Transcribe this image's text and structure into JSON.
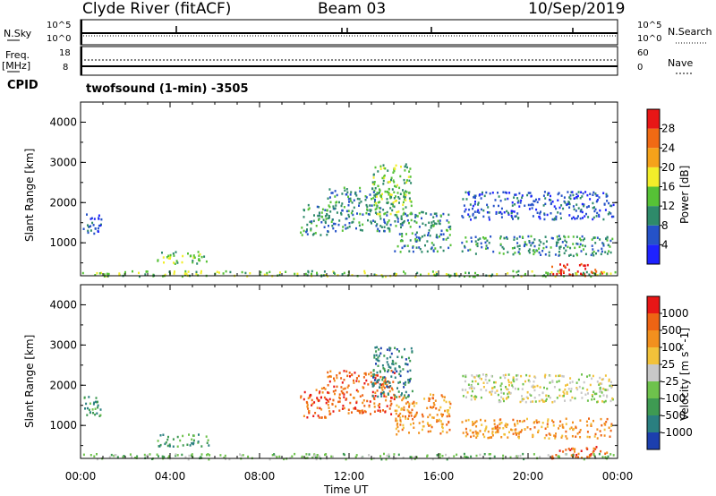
{
  "header": {
    "station": "Clyde River (fitACF)",
    "beam": "Beam 03",
    "date": "10/Sep/2019"
  },
  "panels": {
    "nsky_label": "N.Sky",
    "nsearch_label": "N.Search",
    "freq_label": "Freq.",
    "freq_unit": "[MHz]",
    "nave_label": "Nave",
    "cpid_label": "CPID",
    "cpid_text": "twofsound (1-min) -3505",
    "nsky_left_ticks": [
      "10^5",
      "10^0"
    ],
    "nsky_right_ticks": [
      "10^5",
      "10^0"
    ],
    "freq_left_ticks": [
      "18",
      "8"
    ],
    "freq_right_ticks": [
      "60",
      "0"
    ]
  },
  "chart_data": [
    {
      "type": "heatmap",
      "name": "Power",
      "ylabel": "Slant Range [km]",
      "xlabel": "Time UT",
      "x_ticks": [
        "00:00",
        "04:00",
        "08:00",
        "12:00",
        "16:00",
        "20:00",
        "00:00"
      ],
      "y_ticks": [
        1000,
        2000,
        3000,
        4000
      ],
      "ylim": [
        180,
        4500
      ],
      "colorbar": {
        "label": "Power [dB]",
        "ticks": [
          "4",
          "8",
          "12",
          "16",
          "20",
          "24",
          "28"
        ],
        "colors": [
          "#1e22ff",
          "#2552c8",
          "#2e8a6a",
          "#56c236",
          "#f2ee2a",
          "#f5a21a",
          "#f06a14",
          "#e81616"
        ]
      },
      "regions": [
        {
          "t0": 0.1,
          "t1": 0.9,
          "r0": 1200,
          "r1": 1800,
          "c": 1
        },
        {
          "t0": 3.4,
          "t1": 5.7,
          "r0": 500,
          "r1": 800,
          "c": 3
        },
        {
          "t0": 9.8,
          "t1": 11.0,
          "r0": 1200,
          "r1": 2000,
          "c": 2
        },
        {
          "t0": 11.0,
          "t1": 14.0,
          "r0": 1300,
          "r1": 2400,
          "c": 2
        },
        {
          "t0": 13.0,
          "t1": 14.8,
          "r0": 1700,
          "r1": 3000,
          "c": 3
        },
        {
          "t0": 14.0,
          "t1": 16.5,
          "r0": 800,
          "r1": 1800,
          "c": 2
        },
        {
          "t0": 17.0,
          "t1": 23.8,
          "r0": 1600,
          "r1": 2300,
          "c": 1
        },
        {
          "t0": 17.0,
          "t1": 23.8,
          "r0": 700,
          "r1": 1200,
          "c": 2
        },
        {
          "t0": 21.0,
          "t1": 23.5,
          "r0": 200,
          "r1": 500,
          "c": 7
        },
        {
          "t0": 0.0,
          "t1": 24.0,
          "r0": 180,
          "r1": 320,
          "c": 3
        }
      ]
    },
    {
      "type": "heatmap",
      "name": "Velocity",
      "ylabel": "Slant Range [km]",
      "xlabel": "Time UT",
      "x_ticks": [
        "00:00",
        "04:00",
        "08:00",
        "12:00",
        "16:00",
        "20:00",
        "00:00"
      ],
      "y_ticks": [
        1000,
        2000,
        3000,
        4000
      ],
      "ylim": [
        180,
        4500
      ],
      "colorbar": {
        "label": "Velocity [m s^-1]",
        "ticks": [
          "1000",
          "500",
          "100",
          "25",
          "-25",
          "-100",
          "-500",
          "-1000"
        ],
        "colors": [
          "#1c3fae",
          "#2a7f80",
          "#3e9a52",
          "#6ec24c",
          "#c8c8c8",
          "#f2c23a",
          "#f2901e",
          "#ee6414",
          "#e81616"
        ]
      },
      "regions": [
        {
          "t0": 0.1,
          "t1": 0.9,
          "r0": 1200,
          "r1": 1800,
          "c": 2
        },
        {
          "t0": 3.4,
          "t1": 5.7,
          "r0": 500,
          "r1": 800,
          "c": 2
        },
        {
          "t0": 9.8,
          "t1": 11.0,
          "r0": 1200,
          "r1": 2000,
          "c": 7
        },
        {
          "t0": 11.0,
          "t1": 14.0,
          "r0": 1300,
          "r1": 2400,
          "c": 7
        },
        {
          "t0": 13.0,
          "t1": 14.8,
          "r0": 1700,
          "r1": 3000,
          "c": 1
        },
        {
          "t0": 14.0,
          "t1": 16.5,
          "r0": 800,
          "r1": 1800,
          "c": 6
        },
        {
          "t0": 17.0,
          "t1": 23.8,
          "r0": 1600,
          "r1": 2300,
          "c": 4
        },
        {
          "t0": 17.0,
          "t1": 23.8,
          "r0": 700,
          "r1": 1200,
          "c": 6
        },
        {
          "t0": 21.0,
          "t1": 23.5,
          "r0": 200,
          "r1": 500,
          "c": 7
        },
        {
          "t0": 0.0,
          "t1": 24.0,
          "r0": 180,
          "r1": 320,
          "c": 3
        }
      ]
    }
  ]
}
